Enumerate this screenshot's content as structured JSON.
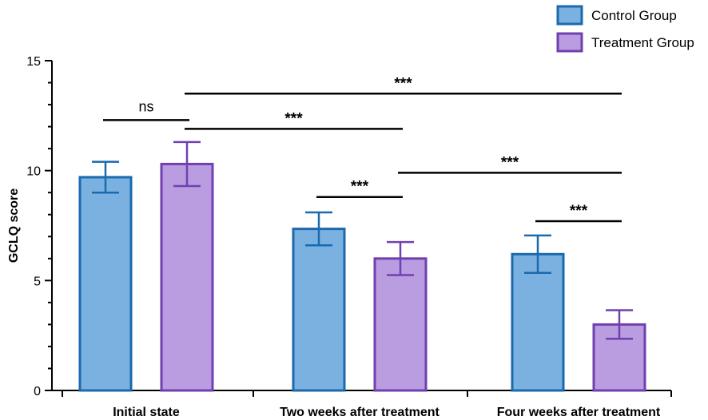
{
  "chart_data": {
    "type": "bar",
    "title": "",
    "xlabel": "",
    "ylabel": "GCLQ score",
    "ylim": [
      0,
      15
    ],
    "yticks": [
      0,
      5,
      10,
      15
    ],
    "grid": false,
    "legend_position": "top-right",
    "categories": [
      "Initial state",
      "Two weeks after treatment",
      "Four weeks after treatment"
    ],
    "series": [
      {
        "name": "Control Group",
        "values": [
          9.7,
          7.35,
          6.2
        ],
        "errors": [
          0.7,
          0.75,
          0.85
        ],
        "fill": "#7bb1e0",
        "stroke": "#1a6aad"
      },
      {
        "name": "Treatment Group",
        "values": [
          10.3,
          6.0,
          3.0
        ],
        "errors": [
          1.0,
          0.75,
          0.65
        ],
        "fill": "#b99de0",
        "stroke": "#7040b0"
      }
    ],
    "significance": [
      {
        "label": "ns",
        "from": [
          0,
          0
        ],
        "to": [
          0,
          1
        ],
        "y": 12.3
      },
      {
        "label": "***",
        "from": [
          0,
          1
        ],
        "to": [
          1,
          1
        ],
        "y": 11.9
      },
      {
        "label": "***",
        "from": [
          0,
          1
        ],
        "to": [
          2,
          1
        ],
        "y": 13.5
      },
      {
        "label": "***",
        "from": [
          1,
          0
        ],
        "to": [
          1,
          1
        ],
        "y": 8.8
      },
      {
        "label": "***",
        "from": [
          1,
          1
        ],
        "to": [
          2,
          1
        ],
        "y": 9.9
      },
      {
        "label": "***",
        "from": [
          2,
          0
        ],
        "to": [
          2,
          1
        ],
        "y": 7.7
      }
    ]
  }
}
